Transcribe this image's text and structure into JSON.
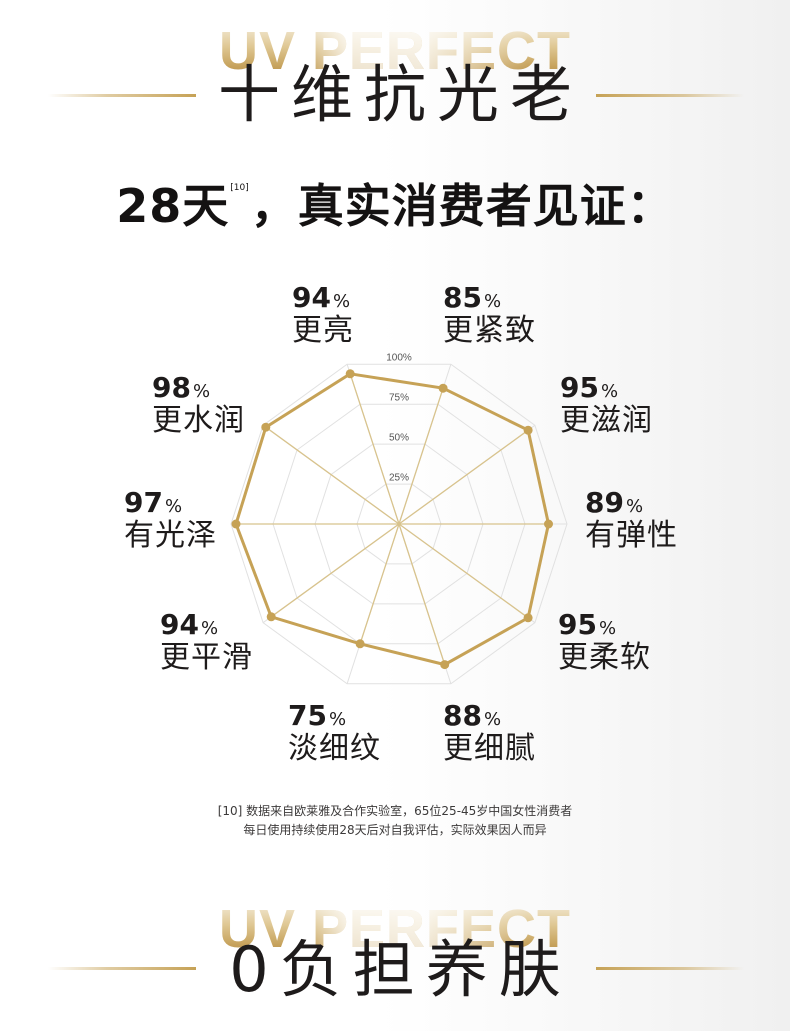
{
  "header": {
    "watermark": "UV PERFECT",
    "title": "十维抗光老"
  },
  "subtitle": {
    "lead": "28天",
    "footnote_ref": "[10]",
    "rest": "，真实消费者见证："
  },
  "chart_data": {
    "type": "radar",
    "categories": [
      "更亮",
      "更紧致",
      "更滋润",
      "有弹性",
      "更柔软",
      "更细腻",
      "淡细纹",
      "更平滑",
      "有光泽",
      "更水润"
    ],
    "values": [
      94,
      85,
      95,
      89,
      95,
      88,
      75,
      94,
      97,
      98
    ],
    "unit": "%",
    "rlim": [
      0,
      100
    ],
    "r_ticks": [
      25,
      50,
      75,
      100
    ],
    "r_tick_labels": [
      "25%",
      "50%",
      "75%",
      "100%"
    ],
    "grid": true
  },
  "footnote": {
    "line_1": "[10] 数据来自欧莱雅及合作实验室，65位25-45岁中国女性消费者",
    "line_2": "每日使用持续使用28天后对自我评估，实际效果因人而异"
  },
  "next_section": {
    "watermark": "UV PERFECT",
    "title": "0负担养肤"
  },
  "colors": {
    "gold": "#c6a256",
    "gold_light": "#d8c38d",
    "grid": "#e1e1e1"
  }
}
